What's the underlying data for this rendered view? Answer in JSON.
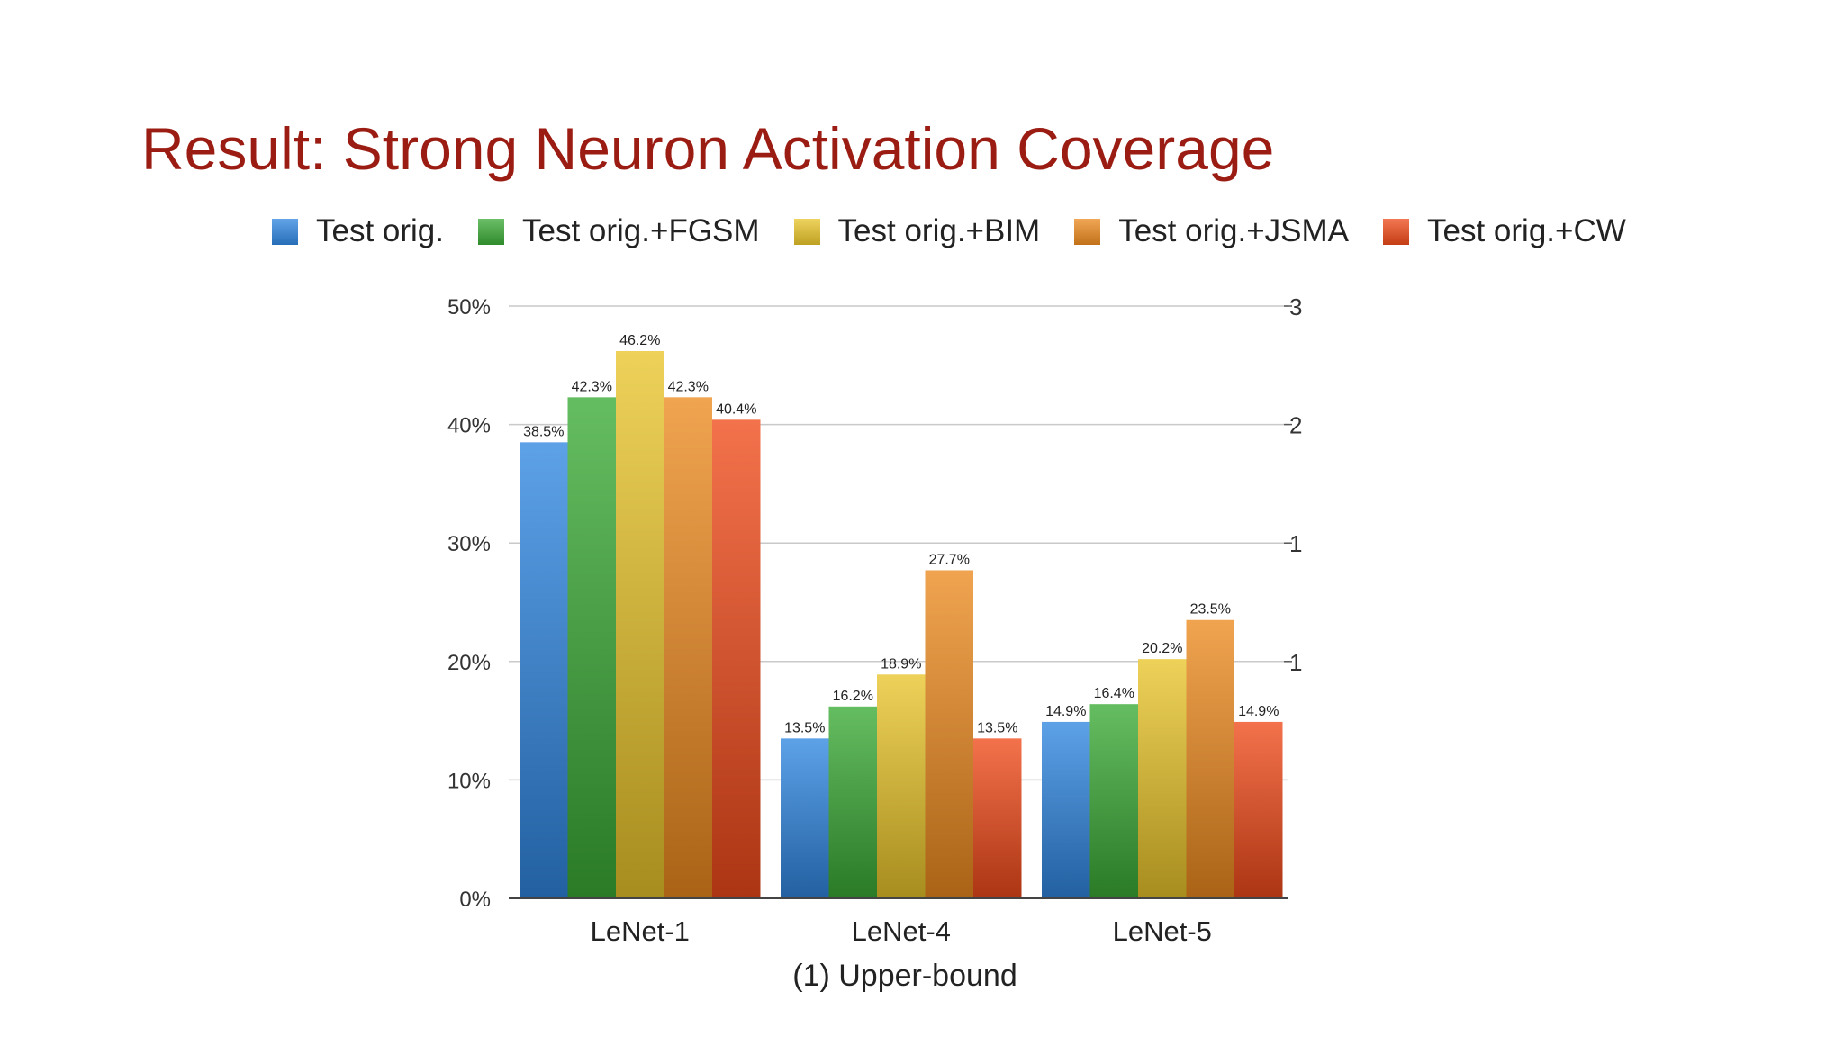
{
  "slide": {
    "title": "Result: Strong Neuron Activation Coverage"
  },
  "chart_data": {
    "type": "bar",
    "title": "",
    "caption": "(1) Upper-bound",
    "xlabel": "",
    "ylabel": "",
    "categories": [
      "LeNet-1",
      "LeNet-4",
      "LeNet-5"
    ],
    "series": [
      {
        "name": "Test orig.",
        "color": "#2f86e0",
        "values": [
          38.5,
          13.5,
          14.9
        ]
      },
      {
        "name": "Test orig.+FGSM",
        "color": "#3aaa35",
        "values": [
          42.3,
          16.2,
          16.4
        ]
      },
      {
        "name": "Test orig.+BIM",
        "color": "#e8c42a",
        "values": [
          46.2,
          18.9,
          20.2
        ]
      },
      {
        "name": "Test orig.+JSMA",
        "color": "#ec8a1e",
        "values": [
          42.3,
          27.7,
          23.5
        ]
      },
      {
        "name": "Test orig.+CW",
        "color": "#ef4a1a",
        "values": [
          40.4,
          13.5,
          14.9
        ]
      }
    ],
    "data_labels": [
      [
        "38.5%",
        "13.5%",
        "14.9%"
      ],
      [
        "42.3%",
        "16.2%",
        "16.4%"
      ],
      [
        "46.2%",
        "18.9%",
        "20.2%"
      ],
      [
        "42.3%",
        "27.7%",
        "23.5%"
      ],
      [
        "40.4%",
        "13.5%",
        "14.9%"
      ]
    ],
    "y_ticks": [
      0,
      10,
      20,
      30,
      40,
      50
    ],
    "y_tick_labels": [
      "0%",
      "10%",
      "20%",
      "30%",
      "40%",
      "50%"
    ],
    "ylim": [
      0,
      50
    ],
    "right_axis_tick_labels": [
      "3",
      "2",
      "1",
      "1"
    ],
    "grid": true,
    "legend_position": "top"
  }
}
